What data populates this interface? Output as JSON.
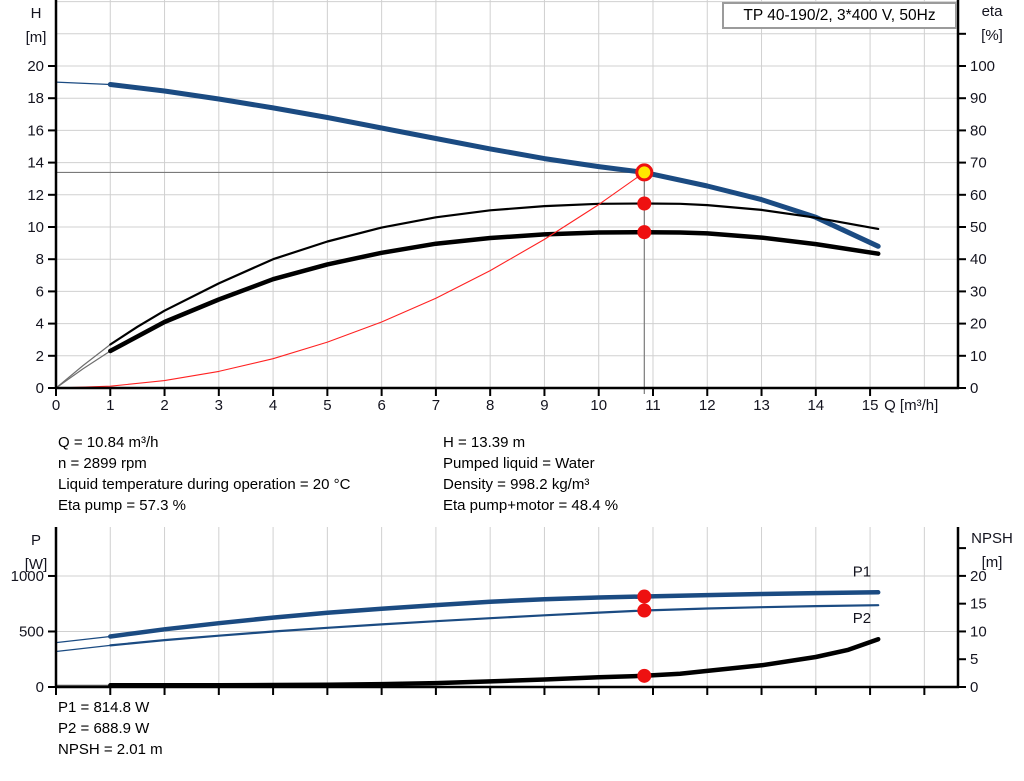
{
  "title_box": {
    "text": "TP 40-190/2, 3*400 V, 50Hz"
  },
  "colors": {
    "curve_blue": "#1b4b82",
    "curve_black": "#000000",
    "curve_red": "#ff2222",
    "marker_red": "#ee1111",
    "marker_yellow": "#ffe800",
    "grid": "#d0d0d0",
    "crosshair": "#7a7a7a",
    "axis": "#000000",
    "label_blue": "#2a64ad"
  },
  "info_top": {
    "left": [
      "Q = 10.84 m³/h",
      "n = 2899 rpm",
      "Liquid temperature during operation = 20 °C",
      "Eta pump = 57.3 %"
    ],
    "right": [
      "H = 13.39 m",
      "Pumped liquid = Water",
      "Density = 998.2 kg/m³",
      "Eta pump+motor = 48.4 %"
    ]
  },
  "info_bottom": [
    "P1 = 814.8 W",
    "P2 = 688.9 W",
    "NPSH = 2.01 m"
  ],
  "chart_data": [
    {
      "id": "head",
      "type": "line",
      "x": {
        "min": 0,
        "max": 16.62,
        "label": "Q [m³/h]",
        "ticks": [
          0,
          1,
          2,
          3,
          4,
          5,
          6,
          7,
          8,
          9,
          10,
          11,
          12,
          13,
          14,
          15
        ],
        "tick_labels": true,
        "grid": [
          1,
          2,
          3,
          4,
          5,
          6,
          7,
          8,
          9,
          10,
          11,
          12,
          13,
          14,
          15,
          16
        ]
      },
      "yLeft": {
        "min": 0,
        "max": 24.1,
        "label": [
          "H",
          "[m]"
        ],
        "ticks": [
          0,
          2,
          4,
          6,
          8,
          10,
          12,
          14,
          16,
          18,
          20
        ],
        "grid": [
          2,
          4,
          6,
          8,
          10,
          12,
          14,
          16,
          18,
          20,
          22,
          24
        ]
      },
      "yRight": {
        "min": 0,
        "max": 120.5,
        "label": [
          "eta",
          "[%]"
        ],
        "ticks": [
          0,
          10,
          20,
          30,
          40,
          50,
          60,
          70,
          80,
          90,
          100
        ],
        "minor": [
          110
        ]
      },
      "series": [
        {
          "name": "head-curve",
          "axis": "left",
          "color": "#1b4b82",
          "width": 5,
          "thin_until": 1,
          "thin_width": 1.2,
          "thin_color": "#1b4b82",
          "points": [
            [
              0,
              19.0
            ],
            [
              1,
              18.85
            ],
            [
              2,
              18.45
            ],
            [
              3,
              17.95
            ],
            [
              4,
              17.4
            ],
            [
              5,
              16.8
            ],
            [
              6,
              16.15
            ],
            [
              7,
              15.5
            ],
            [
              8,
              14.85
            ],
            [
              9,
              14.25
            ],
            [
              10,
              13.75
            ],
            [
              10.84,
              13.39
            ],
            [
              12,
              12.55
            ],
            [
              13,
              11.7
            ],
            [
              14,
              10.6
            ],
            [
              15.15,
              8.8
            ]
          ]
        },
        {
          "name": "eta-pump-curve",
          "axis": "right",
          "color": "#000000",
          "width": 2.2,
          "thin_until": 1,
          "thin_width": 1.2,
          "thin_color": "#6e6e6e",
          "points": [
            [
              0,
              0
            ],
            [
              0.5,
              7
            ],
            [
              1,
              13.5
            ],
            [
              1.5,
              19
            ],
            [
              2,
              24
            ],
            [
              3,
              32.5
            ],
            [
              4,
              40
            ],
            [
              5,
              45.5
            ],
            [
              6,
              49.8
            ],
            [
              7,
              53
            ],
            [
              8,
              55.2
            ],
            [
              9,
              56.5
            ],
            [
              10,
              57.2
            ],
            [
              10.84,
              57.3
            ],
            [
              11.5,
              57.2
            ],
            [
              12,
              56.8
            ],
            [
              13,
              55.3
            ],
            [
              14,
              52.9
            ],
            [
              15.15,
              49.4
            ]
          ]
        },
        {
          "name": "eta-pump-motor-curve",
          "axis": "right",
          "color": "#000000",
          "width": 4.5,
          "thin_until": 1,
          "thin_width": 1.2,
          "thin_color": "#6e6e6e",
          "points": [
            [
              0,
              0
            ],
            [
              0.5,
              6
            ],
            [
              1,
              11.5
            ],
            [
              1.5,
              16
            ],
            [
              2,
              20.5
            ],
            [
              3,
              27.5
            ],
            [
              4,
              33.8
            ],
            [
              5,
              38.4
            ],
            [
              6,
              42
            ],
            [
              7,
              44.8
            ],
            [
              8,
              46.6
            ],
            [
              9,
              47.7
            ],
            [
              10,
              48.3
            ],
            [
              10.84,
              48.4
            ],
            [
              11.5,
              48.3
            ],
            [
              12,
              48.0
            ],
            [
              13,
              46.7
            ],
            [
              14,
              44.7
            ],
            [
              15.15,
              41.7
            ]
          ]
        },
        {
          "name": "system-curve",
          "axis": "left",
          "color": "#ff2222",
          "width": 1.1,
          "points": [
            [
              0,
              0
            ],
            [
              1,
              0.11
            ],
            [
              2,
              0.46
            ],
            [
              3,
              1.03
            ],
            [
              4,
              1.82
            ],
            [
              5,
              2.85
            ],
            [
              6,
              4.1
            ],
            [
              7,
              5.58
            ],
            [
              8,
              7.29
            ],
            [
              9,
              9.23
            ],
            [
              10,
              11.39
            ],
            [
              10.84,
              13.39
            ]
          ]
        }
      ],
      "crosshair": {
        "q": 10.84,
        "h": 13.39
      },
      "markers": [
        {
          "name": "operating-point-head",
          "q": 10.84,
          "v": 13.39,
          "axis": "left",
          "r": 7.5,
          "fill": "#ffe800",
          "stroke": "#ee1111",
          "stroke_width": 3,
          "interactable": true
        },
        {
          "name": "operating-point-eta-pump",
          "q": 10.84,
          "v": 57.3,
          "axis": "right",
          "r": 7,
          "fill": "#ee1111",
          "stroke": "none",
          "stroke_width": 0,
          "interactable": false
        },
        {
          "name": "operating-point-eta-pump-motor",
          "q": 10.84,
          "v": 48.4,
          "axis": "right",
          "r": 7,
          "fill": "#ee1111",
          "stroke": "none",
          "stroke_width": 0,
          "interactable": false
        }
      ],
      "annotations": []
    },
    {
      "id": "power",
      "type": "line",
      "x": {
        "min": 0,
        "max": 16.62,
        "label": "",
        "ticks": [
          0,
          1,
          2,
          3,
          4,
          5,
          6,
          7,
          8,
          9,
          10,
          11,
          12,
          13,
          14,
          15,
          16
        ],
        "tick_labels": false,
        "grid": [
          1,
          2,
          3,
          4,
          5,
          6,
          7,
          8,
          9,
          10,
          11,
          12,
          13,
          14,
          15,
          16
        ]
      },
      "yLeft": {
        "min": 0,
        "max": 1441,
        "label": [
          "P",
          "[W]"
        ],
        "ticks": [
          0,
          500,
          1000
        ],
        "grid": [
          500,
          1000
        ]
      },
      "yRight": {
        "min": 0,
        "max": 28.8,
        "label": [
          "NPSH",
          "[m]"
        ],
        "ticks": [
          0,
          5,
          10,
          15,
          20
        ],
        "minor": [
          25
        ]
      },
      "series": [
        {
          "name": "p1-curve",
          "axis": "left",
          "color": "#1b4b82",
          "width": 4.5,
          "thin_until": 1,
          "thin_width": 1.2,
          "thin_color": "#1b4b82",
          "points": [
            [
              0,
              400
            ],
            [
              1,
              455
            ],
            [
              2,
              520
            ],
            [
              3,
              575
            ],
            [
              4,
              625
            ],
            [
              5,
              668
            ],
            [
              6,
              705
            ],
            [
              7,
              738
            ],
            [
              8,
              768
            ],
            [
              9,
              790
            ],
            [
              10,
              806
            ],
            [
              10.84,
              815
            ],
            [
              12,
              828
            ],
            [
              13,
              838
            ],
            [
              14,
              846
            ],
            [
              15.15,
              853
            ]
          ]
        },
        {
          "name": "p2-curve",
          "axis": "left",
          "color": "#1b4b82",
          "width": 2.2,
          "thin_until": 1,
          "thin_width": 1.2,
          "thin_color": "#1b4b82",
          "points": [
            [
              0,
              320
            ],
            [
              1,
              375
            ],
            [
              2,
              422
            ],
            [
              3,
              462
            ],
            [
              4,
              500
            ],
            [
              5,
              533
            ],
            [
              6,
              564
            ],
            [
              7,
              593
            ],
            [
              8,
              620
            ],
            [
              9,
              646
            ],
            [
              10,
              670
            ],
            [
              10.84,
              689
            ],
            [
              12,
              707
            ],
            [
              13,
              719
            ],
            [
              14,
              729
            ],
            [
              15.15,
              737
            ]
          ]
        },
        {
          "name": "npsh-curve",
          "axis": "right",
          "color": "#000000",
          "width": 4.5,
          "thin_until": 1,
          "thin_width": 1.2,
          "thin_color": "#555555",
          "points": [
            [
              0,
              0.3
            ],
            [
              1,
              0.3
            ],
            [
              2,
              0.3
            ],
            [
              3,
              0.32
            ],
            [
              4,
              0.36
            ],
            [
              5,
              0.42
            ],
            [
              6,
              0.52
            ],
            [
              7,
              0.7
            ],
            [
              8,
              1.0
            ],
            [
              9,
              1.35
            ],
            [
              10,
              1.75
            ],
            [
              10.84,
              2.01
            ],
            [
              11.5,
              2.4
            ],
            [
              12,
              2.9
            ],
            [
              13,
              3.9
            ],
            [
              14,
              5.4
            ],
            [
              14.6,
              6.7
            ],
            [
              15.15,
              8.6
            ]
          ]
        }
      ],
      "markers": [
        {
          "name": "operating-point-p1",
          "q": 10.84,
          "v": 814.8,
          "axis": "left",
          "r": 7,
          "fill": "#ee1111",
          "stroke": "none",
          "stroke_width": 0,
          "interactable": false
        },
        {
          "name": "operating-point-p2",
          "q": 10.84,
          "v": 688.9,
          "axis": "left",
          "r": 7,
          "fill": "#ee1111",
          "stroke": "none",
          "stroke_width": 0,
          "interactable": false
        },
        {
          "name": "operating-point-npsh",
          "q": 10.84,
          "v": 2.01,
          "axis": "right",
          "r": 7,
          "fill": "#ee1111",
          "stroke": "none",
          "stroke_width": 0,
          "interactable": false
        }
      ],
      "annotations": [
        {
          "name": "p1-label",
          "text": "P1",
          "q": 14.85,
          "axis": "left",
          "v": 1040,
          "color": "#2a64ad"
        },
        {
          "name": "p2-label",
          "text": "P2",
          "q": 14.85,
          "axis": "left",
          "v": 620,
          "color": "#2a64ad"
        }
      ]
    }
  ]
}
